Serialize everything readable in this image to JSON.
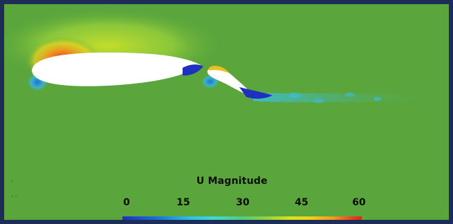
{
  "legend": {
    "title": "U Magnitude",
    "ticks": [
      "0",
      "15",
      "30",
      "45",
      "60"
    ],
    "range": [
      0,
      60
    ]
  },
  "colors": {
    "border": "#1d2d57",
    "freestream": "#5aa63c",
    "low": "#1f2fbf",
    "high": "#d52b1b"
  }
}
